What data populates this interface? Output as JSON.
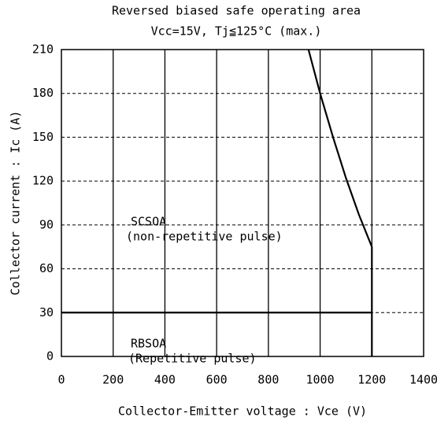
{
  "chart_data": {
    "type": "line",
    "title": "Reversed biased safe operating area",
    "subtitle": "Vcc=15V, Tj≦125°C  (max.)",
    "x_label": "Collector-Emitter voltage : Vce (V)",
    "y_label": "Collector current : Ic (A)",
    "xlim": [
      0,
      1400
    ],
    "xticks": [
      0,
      200,
      400,
      600,
      800,
      1000,
      1200,
      1400
    ],
    "ylim": [
      0,
      210
    ],
    "yticks": [
      0,
      30,
      60,
      90,
      120,
      150,
      180,
      210
    ],
    "grid": true,
    "series": [
      {
        "name": "SCSOA",
        "color": "#000000",
        "x": [
          955,
          1000,
          1050,
          1100,
          1150,
          1200,
          1200
        ],
        "values": [
          210,
          180,
          150,
          122,
          97,
          75,
          0
        ]
      },
      {
        "name": "RBSOA",
        "color": "#000000",
        "x": [
          0,
          1200
        ],
        "values": [
          30,
          30
        ]
      }
    ],
    "annotations": [
      "(non-repetitive pulse)",
      "(Repetitive pulse)"
    ]
  }
}
